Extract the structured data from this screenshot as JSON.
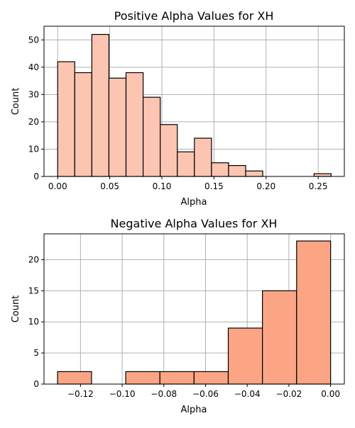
{
  "chart_data": [
    {
      "type": "bar",
      "title": "Positive Alpha Values for XH",
      "xlabel": "Alpha",
      "ylabel": "Count",
      "color": "#fcc5b1",
      "grid": true,
      "xlim": [
        -0.0131,
        0.2751
      ],
      "ylim": [
        0,
        55
      ],
      "xticks": [
        0.0,
        0.05,
        0.1,
        0.15,
        0.2,
        0.25
      ],
      "xtick_labels": [
        "0.00",
        "0.05",
        "0.10",
        "0.15",
        "0.20",
        "0.25"
      ],
      "yticks": [
        0,
        10,
        20,
        30,
        40,
        50
      ],
      "ytick_labels": [
        "0",
        "10",
        "20",
        "30",
        "40",
        "50"
      ],
      "bins": [
        {
          "x0": 0.0,
          "x1": 0.0164,
          "count": 42
        },
        {
          "x0": 0.0164,
          "x1": 0.0328,
          "count": 38
        },
        {
          "x0": 0.0328,
          "x1": 0.0492,
          "count": 52
        },
        {
          "x0": 0.0492,
          "x1": 0.0656,
          "count": 36
        },
        {
          "x0": 0.0656,
          "x1": 0.082,
          "count": 38
        },
        {
          "x0": 0.082,
          "x1": 0.0984,
          "count": 29
        },
        {
          "x0": 0.0984,
          "x1": 0.1148,
          "count": 19
        },
        {
          "x0": 0.1148,
          "x1": 0.1312,
          "count": 9
        },
        {
          "x0": 0.1312,
          "x1": 0.1476,
          "count": 14
        },
        {
          "x0": 0.1476,
          "x1": 0.164,
          "count": 5
        },
        {
          "x0": 0.164,
          "x1": 0.1804,
          "count": 4
        },
        {
          "x0": 0.1804,
          "x1": 0.1968,
          "count": 2
        },
        {
          "x0": 0.1968,
          "x1": 0.2132,
          "count": 0
        },
        {
          "x0": 0.2132,
          "x1": 0.2296,
          "count": 0
        },
        {
          "x0": 0.2296,
          "x1": 0.246,
          "count": 0
        },
        {
          "x0": 0.246,
          "x1": 0.2624,
          "count": 1
        }
      ]
    },
    {
      "type": "bar",
      "title": "Negative Alpha Values for XH",
      "xlabel": "Alpha",
      "ylabel": "Count",
      "color": "#fca584",
      "grid": true,
      "xlim": [
        -0.1375,
        0.0066
      ],
      "ylim": [
        0,
        24.15
      ],
      "xticks": [
        -0.12,
        -0.1,
        -0.08,
        -0.06,
        -0.04,
        -0.02,
        0.0
      ],
      "xtick_labels": [
        "−0.12",
        "−0.10",
        "−0.08",
        "−0.06",
        "−0.04",
        "−0.02",
        "0.00"
      ],
      "yticks": [
        0,
        5,
        10,
        15,
        20
      ],
      "ytick_labels": [
        "0",
        "5",
        "10",
        "15",
        "20"
      ],
      "bins": [
        {
          "x0": -0.131,
          "x1": -0.1147,
          "count": 2
        },
        {
          "x0": -0.1147,
          "x1": -0.0983,
          "count": 0
        },
        {
          "x0": -0.0983,
          "x1": -0.0819,
          "count": 2
        },
        {
          "x0": -0.0819,
          "x1": -0.0655,
          "count": 2
        },
        {
          "x0": -0.0655,
          "x1": -0.0491,
          "count": 2
        },
        {
          "x0": -0.0491,
          "x1": -0.0327,
          "count": 9
        },
        {
          "x0": -0.0327,
          "x1": -0.0163,
          "count": 15
        },
        {
          "x0": -0.0163,
          "x1": 0.0,
          "count": 23
        }
      ]
    }
  ]
}
